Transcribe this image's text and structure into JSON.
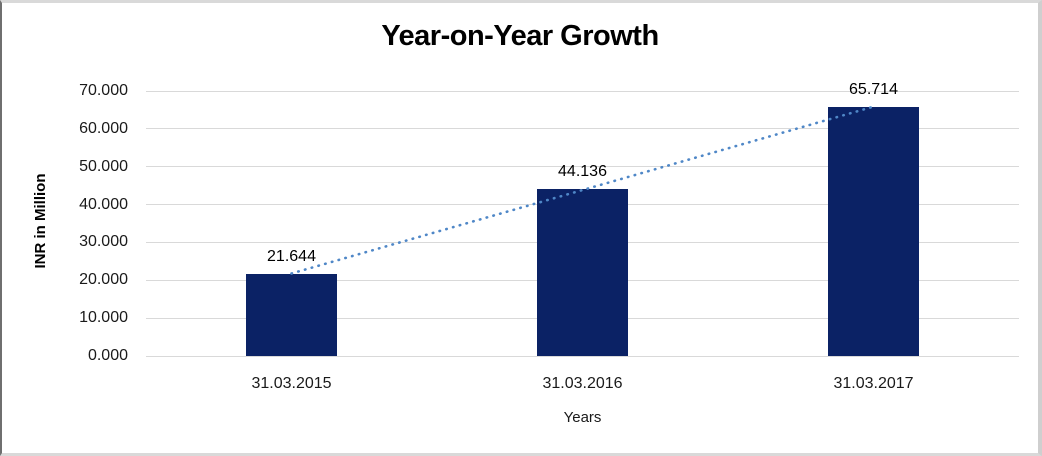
{
  "chart_data": {
    "type": "bar",
    "title": "Year-on-Year Growth",
    "xlabel": "Years",
    "ylabel": "INR in Million",
    "categories": [
      "31.03.2015",
      "31.03.2016",
      "31.03.2017"
    ],
    "values": [
      21.644,
      44.136,
      65.714
    ],
    "value_labels": [
      "21.644",
      "44.136",
      "65.714"
    ],
    "ylim": [
      0,
      70
    ],
    "y_ticks": [
      {
        "value": 0,
        "label": "0.000"
      },
      {
        "value": 10,
        "label": "10.000"
      },
      {
        "value": 20,
        "label": "20.000"
      },
      {
        "value": 30,
        "label": "30.000"
      },
      {
        "value": 40,
        "label": "40.000"
      },
      {
        "value": 50,
        "label": "50.000"
      },
      {
        "value": 60,
        "label": "60.000"
      },
      {
        "value": 70,
        "label": "70.000"
      }
    ],
    "grid": true,
    "legend_position": "none",
    "trendline": {
      "type": "linear",
      "style": "dotted"
    },
    "colors": {
      "bar": "#0B2265",
      "trendline": "#4F87C7",
      "gridline": "#D9D9D9",
      "text": "#000000"
    }
  }
}
